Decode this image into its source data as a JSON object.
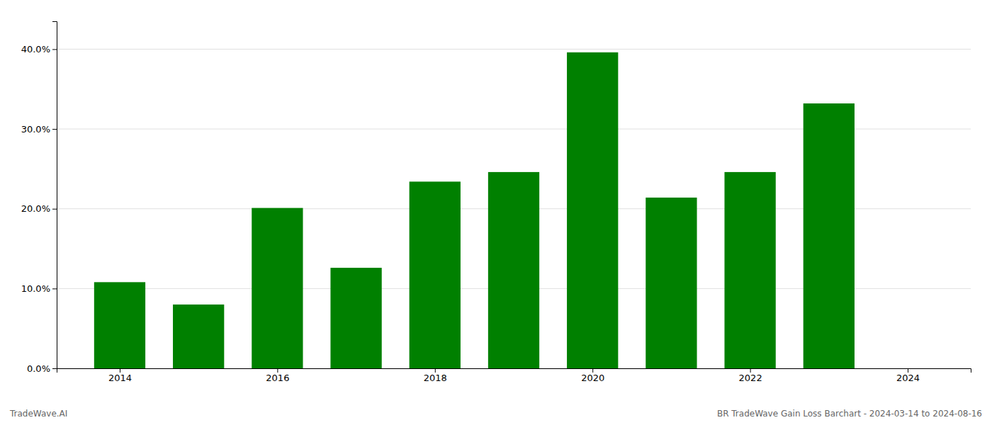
{
  "chart_data": {
    "type": "bar",
    "x": [
      2014,
      2015,
      2016,
      2017,
      2018,
      2019,
      2020,
      2021,
      2022,
      2023
    ],
    "values": [
      0.108,
      0.08,
      0.201,
      0.126,
      0.234,
      0.246,
      0.396,
      0.214,
      0.246,
      0.332
    ],
    "color": "#008000",
    "xlim": [
      2013.2,
      2024.8
    ],
    "xticks": [
      2014,
      2016,
      2018,
      2020,
      2022,
      2024
    ],
    "ylim": [
      0,
      0.435
    ],
    "yticks": [
      {
        "value": 0.0,
        "label": "0.0%"
      },
      {
        "value": 0.1,
        "label": "10.0%"
      },
      {
        "value": 0.2,
        "label": "20.0%"
      },
      {
        "value": 0.3,
        "label": "30.0%"
      },
      {
        "value": 0.4,
        "label": "40.0%"
      }
    ],
    "grid": true,
    "annotations": [
      "TradeWave.AI",
      "BR TradeWave Gain Loss Barchart - 2024-03-14 to 2024-08-16"
    ]
  }
}
